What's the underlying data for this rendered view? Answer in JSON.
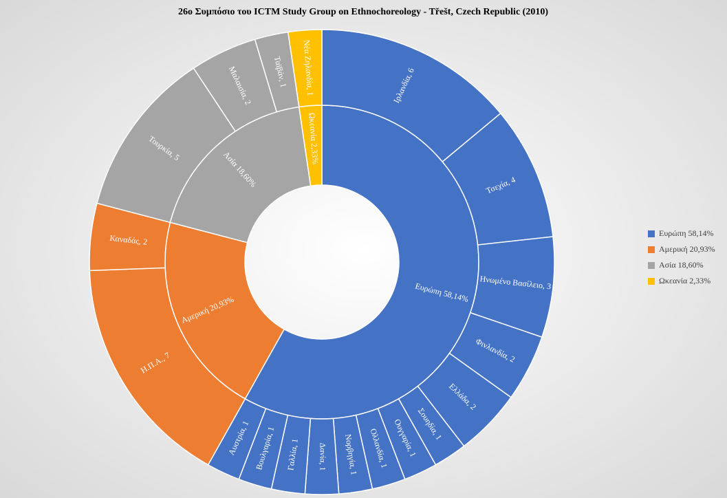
{
  "chart_data": {
    "type": "sunburst",
    "title": "26ο Συμπόσιο του ICTM Study Group on Ethnochoreology - Třešt, Czech Republic (2010)",
    "groups": [
      {
        "label": "Ευρώπη 58,14%",
        "value": 58.14,
        "color": "#4472c4",
        "children": [
          {
            "label": "Ιρλανδία, 6",
            "value": 6
          },
          {
            "label": "Τσεχία, 4",
            "value": 4
          },
          {
            "label": "Ηνωμένο Βασίλειο, 3",
            "value": 3
          },
          {
            "label": "Φινλανδία, 2",
            "value": 2
          },
          {
            "label": "Ελλάδα, 2",
            "value": 2
          },
          {
            "label": "Σουηδία, 1",
            "value": 1
          },
          {
            "label": "Ουγγαρία, 1",
            "value": 1
          },
          {
            "label": "Ολλανδία, 1",
            "value": 1
          },
          {
            "label": "Νορβηγία, 1",
            "value": 1
          },
          {
            "label": "Δανία, 1",
            "value": 1
          },
          {
            "label": "Γαλλία, 1",
            "value": 1
          },
          {
            "label": "Βουλγαρία, 1",
            "value": 1
          },
          {
            "label": "Αυστρία, 1",
            "value": 1
          }
        ]
      },
      {
        "label": "Αμερική 20,93%",
        "value": 20.93,
        "color": "#ed7d31",
        "children": [
          {
            "label": "Η.Π.Α., 7",
            "value": 7
          },
          {
            "label": "Καναδάς, 2",
            "value": 2
          }
        ]
      },
      {
        "label": "Ασία 18,60%",
        "value": 18.6,
        "color": "#a5a5a5",
        "children": [
          {
            "label": "Τουρκία, 5",
            "value": 5
          },
          {
            "label": "Μαλαισία, 2",
            "value": 2
          },
          {
            "label": "Ταϊβάν, 1",
            "value": 1
          }
        ]
      },
      {
        "label": "Ωκεανία 2,33%",
        "value": 2.33,
        "color": "#ffc000",
        "children": [
          {
            "label": "Νέα Ζηλανδία, 1",
            "value": 1
          }
        ]
      }
    ],
    "legend": "right"
  }
}
